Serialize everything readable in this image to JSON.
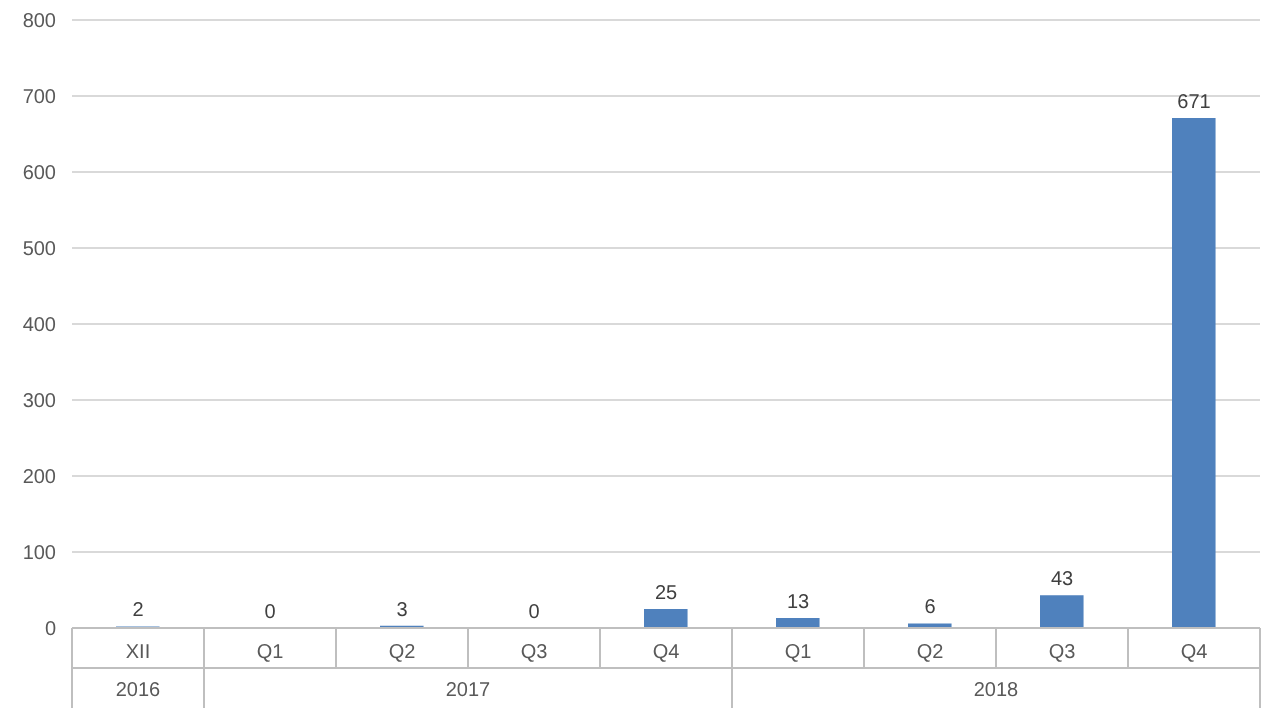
{
  "chart_data": {
    "type": "bar",
    "categories": [
      "XII",
      "Q1",
      "Q2",
      "Q3",
      "Q4",
      "Q1",
      "Q2",
      "Q3",
      "Q4"
    ],
    "values": [
      2,
      0,
      3,
      0,
      25,
      13,
      6,
      43,
      671
    ],
    "color": "#4f81bd",
    "data_labels": true,
    "ylim": [
      0,
      800
    ],
    "yticks": [
      0,
      100,
      200,
      300,
      400,
      500,
      600,
      700,
      800
    ],
    "grid": "y",
    "annotations": [
      "2016",
      "2017",
      "2018"
    ]
  }
}
